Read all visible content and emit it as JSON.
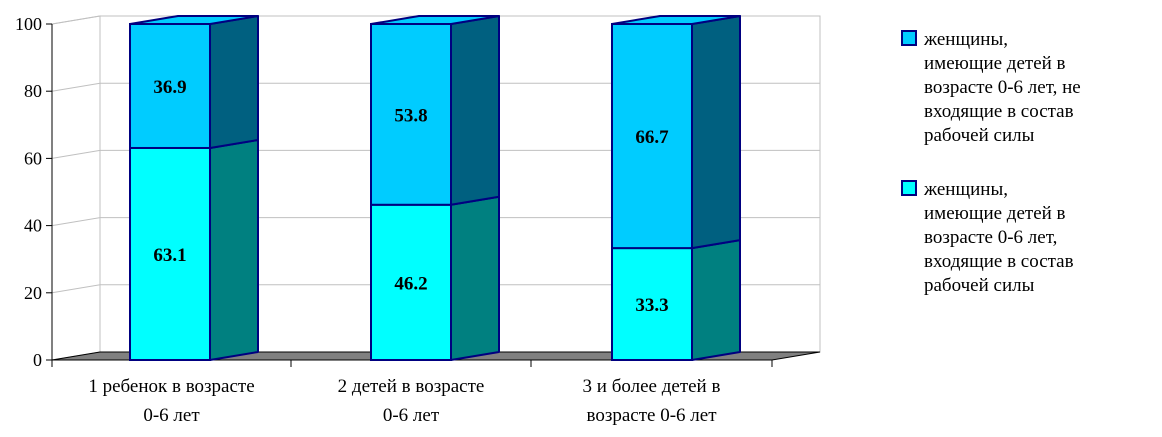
{
  "chart_data": {
    "type": "bar",
    "stacked": true,
    "three_d": true,
    "ylim": [
      0,
      100
    ],
    "yticks": [
      0,
      20,
      40,
      60,
      80,
      100
    ],
    "grid": true,
    "legend_position": "right",
    "categories": [
      [
        "1 ребенок в возрасте",
        "0-6 лет"
      ],
      [
        "2 детей в возрасте",
        "0-6 лет"
      ],
      [
        "3 и более детей в",
        "возрасте 0-6 лет"
      ]
    ],
    "series": [
      {
        "name": [
          "женщины,",
          "имеющие детей в",
          "возрасте 0-6 лет,",
          "входящие в состав",
          "рабочей силы"
        ],
        "values": [
          63.1,
          46.2,
          33.3
        ],
        "color": "#00FFFF",
        "side_color": "#008080"
      },
      {
        "name": [
          "женщины,",
          "имеющие детей в",
          "возрасте 0-6 лет, не",
          "входящие в состав",
          "рабочей силы"
        ],
        "values": [
          36.9,
          53.8,
          66.7
        ],
        "color": "#00CCFF",
        "side_color": "#006080"
      }
    ],
    "legend_order": [
      1,
      0
    ],
    "outline_color": "#000080"
  }
}
